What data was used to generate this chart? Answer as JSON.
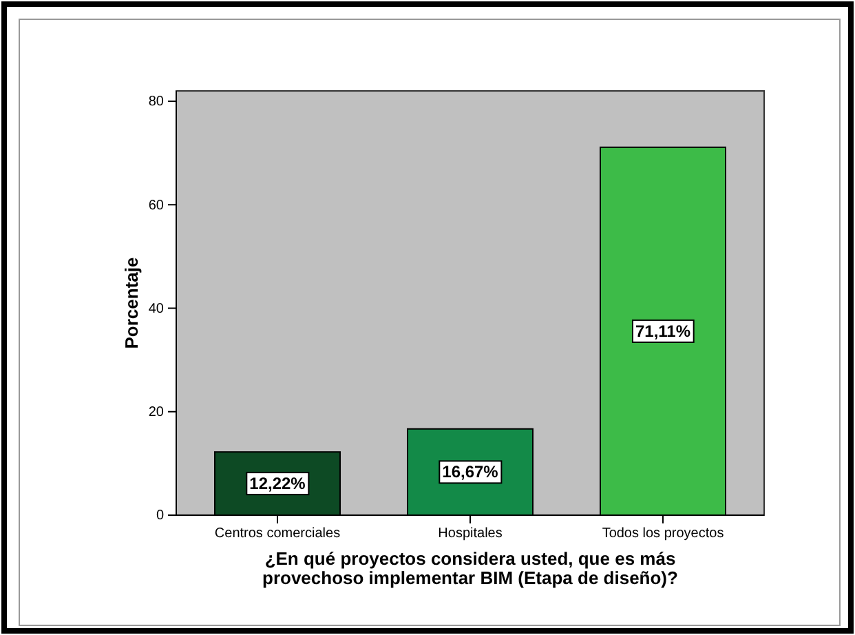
{
  "chart_data": {
    "type": "bar",
    "xlabel": "¿En qué proyectos considera usted, que es más provechoso implementar BIM (Etapa de diseño)?",
    "ylabel": "Porcentaje",
    "categories": [
      "Centros comerciales",
      "Hospitales",
      "Todos los proyectos"
    ],
    "values": [
      12.22,
      16.67,
      71.11
    ],
    "colors": [
      "#0d4a24",
      "#138a48",
      "#3dbb48"
    ],
    "value_labels": [
      "12,22%",
      "16,67%",
      "71,11%"
    ],
    "ylim": [
      0,
      82
    ],
    "yticks": [
      0,
      20,
      40,
      60,
      80
    ],
    "grid": false
  }
}
